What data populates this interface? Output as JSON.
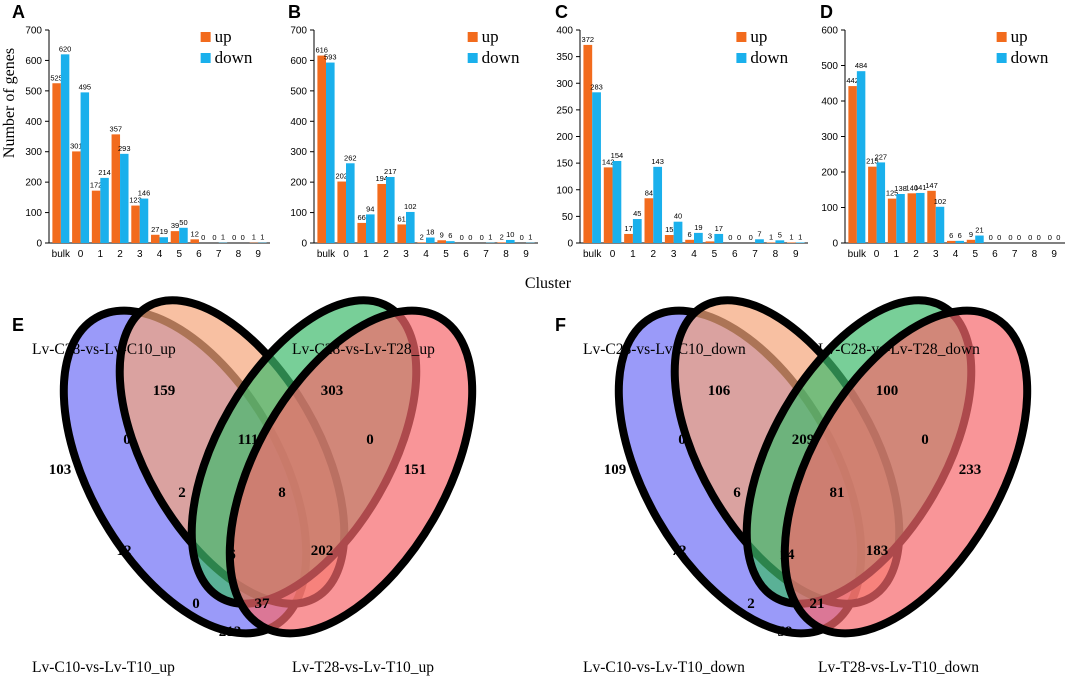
{
  "figure": {
    "ylabel": "Number of genes",
    "xlabel": "Cluster"
  },
  "chart_data": [
    {
      "panel": "A",
      "type": "bar",
      "categories": [
        "bulk",
        "0",
        "1",
        "2",
        "3",
        "4",
        "5",
        "6",
        "7",
        "8",
        "9"
      ],
      "ylim": [
        0,
        700
      ],
      "yticks": [
        0,
        100,
        200,
        300,
        400,
        500,
        600,
        700
      ],
      "series": [
        {
          "name": "up",
          "color": "#f26b1d",
          "values": [
            525,
            301,
            172,
            357,
            123,
            27,
            39,
            12,
            0,
            0,
            1
          ]
        },
        {
          "name": "down",
          "color": "#1ab0ec",
          "values": [
            620,
            495,
            214,
            293,
            146,
            19,
            50,
            0,
            1,
            0,
            1
          ]
        }
      ]
    },
    {
      "panel": "B",
      "type": "bar",
      "categories": [
        "bulk",
        "0",
        "1",
        "2",
        "3",
        "4",
        "5",
        "6",
        "7",
        "8",
        "9"
      ],
      "ylim": [
        0,
        700
      ],
      "yticks": [
        0,
        100,
        200,
        300,
        400,
        500,
        600,
        700
      ],
      "series": [
        {
          "name": "up",
          "color": "#f26b1d",
          "values": [
            616,
            202,
            66,
            194,
            61,
            2,
            9,
            0,
            0,
            2,
            0
          ]
        },
        {
          "name": "down",
          "color": "#1ab0ec",
          "values": [
            593,
            262,
            94,
            217,
            102,
            18,
            6,
            0,
            1,
            10,
            1
          ]
        }
      ]
    },
    {
      "panel": "C",
      "type": "bar",
      "categories": [
        "bulk",
        "0",
        "1",
        "2",
        "3",
        "4",
        "5",
        "6",
        "7",
        "8",
        "9"
      ],
      "ylim": [
        0,
        400
      ],
      "yticks": [
        0,
        50,
        100,
        150,
        200,
        250,
        300,
        350,
        400
      ],
      "series": [
        {
          "name": "up",
          "color": "#f26b1d",
          "values": [
            372,
            142,
            17,
            84,
            15,
            6,
            3,
            0,
            0,
            1,
            1
          ]
        },
        {
          "name": "down",
          "color": "#1ab0ec",
          "values": [
            283,
            154,
            45,
            143,
            40,
            19,
            17,
            0,
            7,
            5,
            1
          ]
        }
      ]
    },
    {
      "panel": "D",
      "type": "bar",
      "categories": [
        "bulk",
        "0",
        "1",
        "2",
        "3",
        "4",
        "5",
        "6",
        "7",
        "8",
        "9"
      ],
      "ylim": [
        0,
        600
      ],
      "yticks": [
        0,
        100,
        200,
        300,
        400,
        500,
        600
      ],
      "series": [
        {
          "name": "up",
          "color": "#f26b1d",
          "values": [
            442,
            215,
            125,
            140,
            147,
            6,
            9,
            0,
            0,
            0,
            0
          ]
        },
        {
          "name": "down",
          "color": "#1ab0ec",
          "values": [
            484,
            227,
            138,
            141,
            102,
            6,
            21,
            0,
            0,
            0,
            0
          ]
        }
      ]
    }
  ],
  "venns": [
    {
      "panel": "E",
      "sets": [
        "Lv-C28-vs-Lv-C10_up",
        "Lv-C28-vs-Lv-T28_up",
        "Lv-C10-vs-Lv-T10_up",
        "Lv-T28-vs-Lv-T10_up"
      ],
      "counts": [
        "103",
        "159",
        "303",
        "151",
        "0",
        "111",
        "0",
        "2",
        "8",
        "12",
        "6",
        "202",
        "0",
        "37",
        "212"
      ]
    },
    {
      "panel": "F",
      "sets": [
        "Lv-C28-vs-Lv-C10_down",
        "Lv-C28-vs-Lv-T28_down",
        "Lv-C10-vs-Lv-T10_down",
        "Lv-T28-vs-Lv-T10_down"
      ],
      "counts": [
        "109",
        "106",
        "100",
        "233",
        "0",
        "209",
        "0",
        "6",
        "81",
        "72",
        "14",
        "183",
        "2",
        "21",
        "59"
      ]
    }
  ],
  "venn_colors": [
    "#6f6ff6",
    "#f5a57b",
    "#3fba6c",
    "#f7686c"
  ]
}
